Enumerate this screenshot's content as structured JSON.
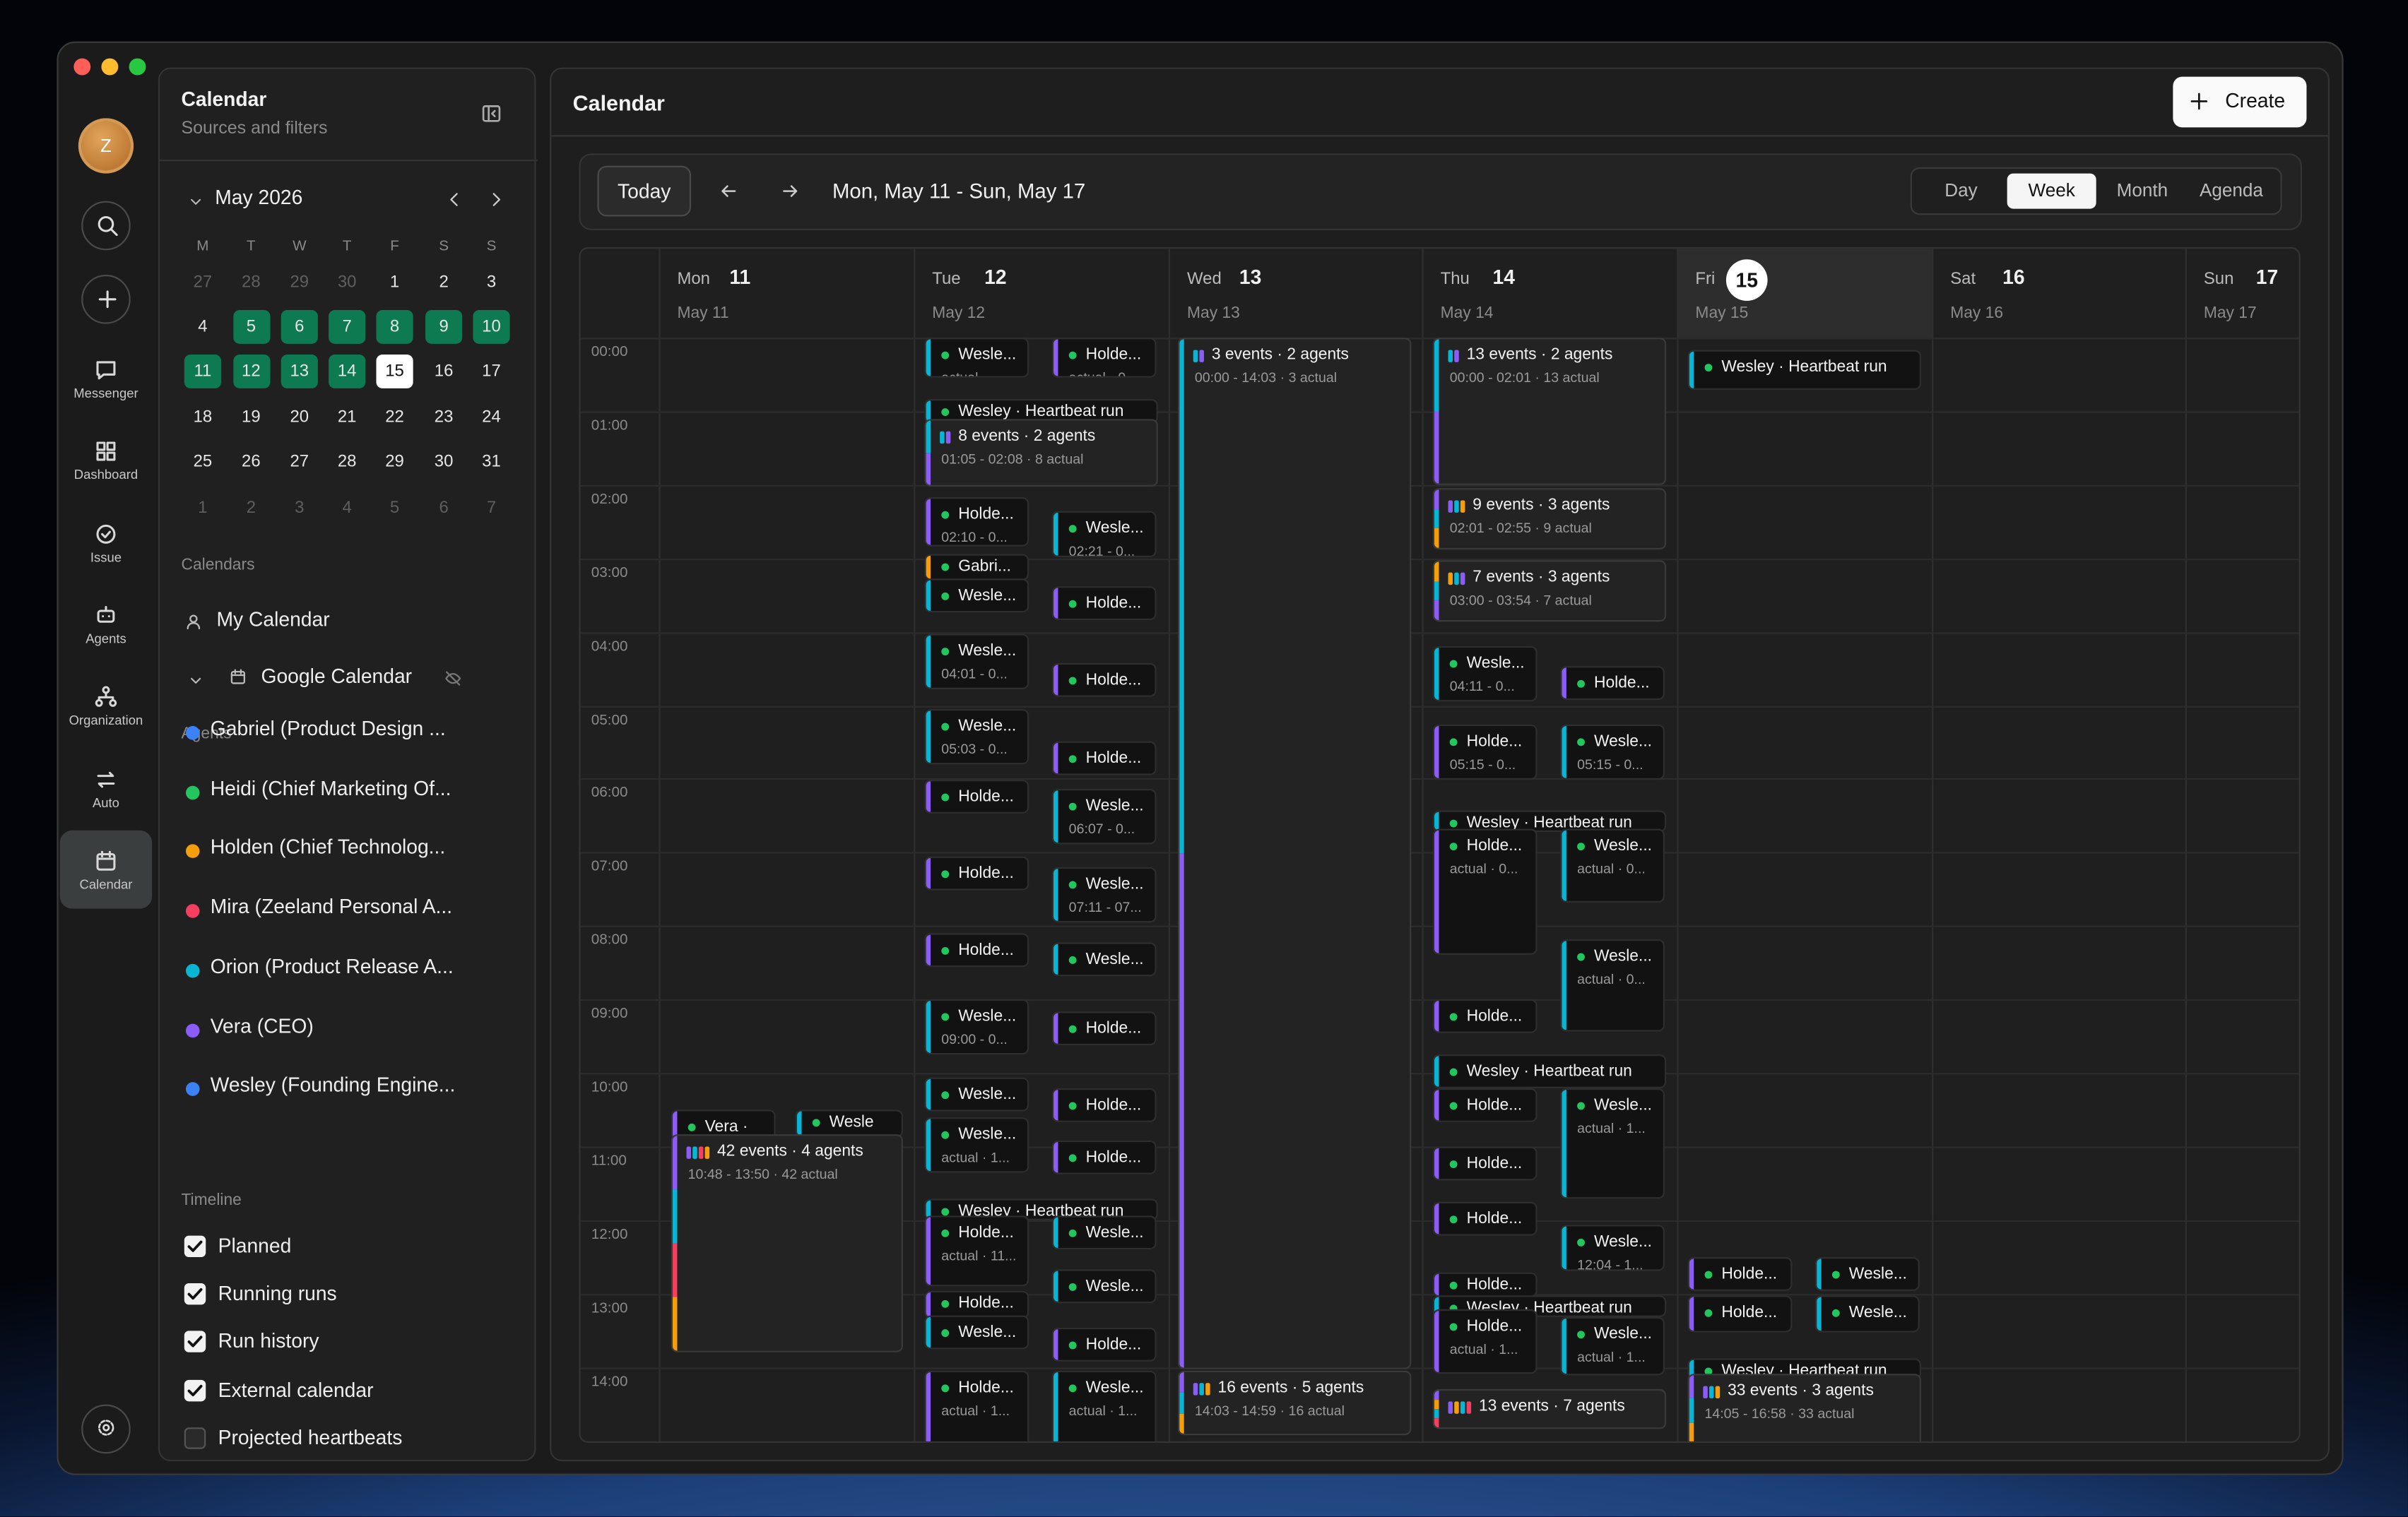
{
  "rail": {
    "avatar": "Z",
    "items": [
      "Messenger",
      "Dashboard",
      "Issue",
      "Agents",
      "Organization",
      "Auto",
      "Calendar"
    ],
    "active": 6
  },
  "sidebar": {
    "title": "Calendar",
    "subtitle": "Sources and filters",
    "month": "May 2026",
    "weekdays": [
      "M",
      "T",
      "W",
      "T",
      "F",
      "S",
      "S"
    ],
    "days": [
      [
        27,
        28,
        29,
        30,
        1,
        2,
        3
      ],
      [
        4,
        5,
        6,
        7,
        8,
        9,
        10
      ],
      [
        11,
        12,
        13,
        14,
        15,
        16,
        17
      ],
      [
        18,
        19,
        20,
        21,
        22,
        23,
        24
      ],
      [
        25,
        26,
        27,
        28,
        29,
        30,
        31
      ],
      [
        1,
        2,
        3,
        4,
        5,
        6,
        7
      ]
    ],
    "calendars_heading": "Calendars",
    "calendars": [
      "My Calendar",
      "Google Calendar"
    ],
    "agents_heading": "Agents",
    "agents": [
      {
        "name": "Gabriel (Product Design ...",
        "color": "#3b82f6"
      },
      {
        "name": "Heidi (Chief Marketing Of...",
        "color": "#22c55e"
      },
      {
        "name": "Holden (Chief Technolog...",
        "color": "#f59e0b"
      },
      {
        "name": "Mira (Zeeland Personal A...",
        "color": "#f43f5e"
      },
      {
        "name": "Orion (Product Release A...",
        "color": "#06b6d4"
      },
      {
        "name": "Vera (CEO)",
        "color": "#8b5cf6"
      },
      {
        "name": "Wesley (Founding Engine...",
        "color": "#3b82f6"
      }
    ],
    "timeline_heading": "Timeline",
    "timeline": [
      {
        "label": "Planned",
        "checked": true
      },
      {
        "label": "Running runs",
        "checked": true
      },
      {
        "label": "Run history",
        "checked": true
      },
      {
        "label": "External calendar",
        "checked": true
      },
      {
        "label": "Projected heartbeats",
        "checked": false
      }
    ]
  },
  "main": {
    "title": "Calendar",
    "create": "Create",
    "today": "Today",
    "range": "Mon, May 11 - Sun, May 17",
    "views": [
      "Day",
      "Week",
      "Month",
      "Agenda"
    ],
    "active_view": 1,
    "today_column": 4,
    "days": [
      {
        "dow": "Mon",
        "day": 11,
        "date": "May 11"
      },
      {
        "dow": "Tue",
        "day": 12,
        "date": "May 12"
      },
      {
        "dow": "Wed",
        "day": 13,
        "date": "May 13"
      },
      {
        "dow": "Thu",
        "day": 14,
        "date": "May 14"
      },
      {
        "dow": "Fri",
        "day": 15,
        "date": "May 15"
      },
      {
        "dow": "Sat",
        "day": 16,
        "date": "May 16"
      },
      {
        "dow": "Sun",
        "day": 17,
        "date": "May 17"
      }
    ],
    "hours": [
      "00:00",
      "01:00",
      "02:00",
      "03:00",
      "04:00",
      "05:00",
      "06:00",
      "07:00",
      "08:00",
      "09:00",
      "10:00",
      "11:00",
      "12:00",
      "13:00",
      "14:00"
    ],
    "events": [
      {
        "title": "Vera ·",
        "color": "#8b5cf6"
      },
      {
        "title": "Wesle",
        "color": "#06b6d4"
      },
      {
        "title": "42 events · 4 agents",
        "detail": "10:48 - 13:50 · 42 actual",
        "colors": [
          "#8b5cf6",
          "#06b6d4",
          "#f43f5e",
          "#f59e0b"
        ]
      },
      {
        "title": "Wesle...",
        "detail": "actual ·...",
        "color": "#06b6d4"
      },
      {
        "title": "Holde...",
        "detail": "actual · 0...",
        "color": "#8b5cf6"
      },
      {
        "title": "Wesley · Heartbeat run",
        "color": "#06b6d4"
      },
      {
        "title": "8 events · 2 agents",
        "detail": "01:05 - 02:08 · 8 actual",
        "colors": [
          "#06b6d4",
          "#8b5cf6"
        ]
      },
      {
        "title": "Holde...",
        "detail": "02:10 - 0...",
        "color": "#8b5cf6"
      },
      {
        "title": "Wesle...",
        "detail": "02:21 - 0...",
        "color": "#06b6d4"
      },
      {
        "title": "Gabri...",
        "color": "#f59e0b"
      },
      {
        "title": "Wesle...",
        "color": "#06b6d4"
      },
      {
        "title": "Holde...",
        "color": "#8b5cf6"
      },
      {
        "title": "Wesle...",
        "detail": "04:01 - 0...",
        "color": "#06b6d4"
      },
      {
        "title": "Holde...",
        "color": "#8b5cf6"
      },
      {
        "title": "Wesle...",
        "detail": "05:03 - 0...",
        "color": "#06b6d4"
      },
      {
        "title": "Holde...",
        "color": "#8b5cf6"
      },
      {
        "title": "Holde...",
        "color": "#8b5cf6"
      },
      {
        "title": "Wesle...",
        "detail": "06:07 - 0...",
        "color": "#06b6d4"
      },
      {
        "title": "Holde...",
        "color": "#8b5cf6"
      },
      {
        "title": "Wesle...",
        "detail": "07:11 - 07...",
        "color": "#06b6d4"
      },
      {
        "title": "Holde...",
        "color": "#8b5cf6"
      },
      {
        "title": "Wesle...",
        "color": "#06b6d4"
      },
      {
        "title": "Wesle...",
        "detail": "09:00 - 0...",
        "color": "#06b6d4"
      },
      {
        "title": "Holde...",
        "color": "#8b5cf6"
      },
      {
        "title": "Wesle...",
        "color": "#06b6d4"
      },
      {
        "title": "Holde...",
        "color": "#8b5cf6"
      },
      {
        "title": "Wesle...",
        "detail": "actual · 1...",
        "color": "#06b6d4"
      },
      {
        "title": "Holde...",
        "color": "#8b5cf6"
      },
      {
        "title": "Wesley · Heartbeat run",
        "color": "#06b6d4"
      },
      {
        "title": "Holde...",
        "detail": "actual · 11...",
        "color": "#8b5cf6"
      },
      {
        "title": "Wesle...",
        "color": "#06b6d4"
      },
      {
        "title": "Wesle...",
        "color": "#06b6d4"
      },
      {
        "title": "Holde...",
        "color": "#8b5cf6"
      },
      {
        "title": "Wesle...",
        "color": "#06b6d4"
      },
      {
        "title": "Holde...",
        "color": "#8b5cf6"
      },
      {
        "title": "Holde...",
        "detail": "actual · 1...",
        "color": "#8b5cf6"
      },
      {
        "title": "Wesle...",
        "detail": "actual · 1...",
        "color": "#06b6d4"
      },
      {
        "title": "3 events · 2 agents",
        "detail": "00:00 - 14:03 · 3 actual",
        "colors": [
          "#06b6d4",
          "#8b5cf6"
        ]
      },
      {
        "title": "16 events · 5 agents",
        "detail": "14:03 - 14:59 · 16 actual",
        "colors": [
          "#8b5cf6",
          "#06b6d4",
          "#f59e0b"
        ]
      },
      {
        "title": "13 events · 2 agents",
        "detail": "00:00 - 02:01 · 13 actual",
        "colors": [
          "#06b6d4",
          "#8b5cf6"
        ]
      },
      {
        "title": "9 events · 3 agents",
        "detail": "02:01 - 02:55 · 9 actual",
        "colors": [
          "#8b5cf6",
          "#06b6d4",
          "#f59e0b"
        ]
      },
      {
        "title": "7 events · 3 agents",
        "detail": "03:00 - 03:54 · 7 actual",
        "colors": [
          "#f59e0b",
          "#06b6d4",
          "#8b5cf6"
        ]
      },
      {
        "title": "Wesle...",
        "detail": "04:11 - 0...",
        "color": "#06b6d4"
      },
      {
        "title": "Holde...",
        "color": "#8b5cf6"
      },
      {
        "title": "Holde...",
        "detail": "05:15 - 0...",
        "color": "#8b5cf6"
      },
      {
        "title": "Wesle...",
        "detail": "05:15 - 0...",
        "color": "#06b6d4"
      },
      {
        "title": "Wesley · Heartbeat run",
        "color": "#06b6d4"
      },
      {
        "title": "Holde...",
        "detail": "actual · 0...",
        "color": "#8b5cf6"
      },
      {
        "title": "Wesle...",
        "detail": "actual · 0...",
        "color": "#06b6d4"
      },
      {
        "title": "Wesle...",
        "detail": "actual · 0...",
        "color": "#06b6d4"
      },
      {
        "title": "Holde...",
        "color": "#8b5cf6"
      },
      {
        "title": "Wesley · Heartbeat run",
        "color": "#06b6d4"
      },
      {
        "title": "Holde...",
        "color": "#8b5cf6"
      },
      {
        "title": "Wesle...",
        "detail": "actual · 1...",
        "color": "#06b6d4"
      },
      {
        "title": "Holde...",
        "color": "#8b5cf6"
      },
      {
        "title": "Holde...",
        "color": "#8b5cf6"
      },
      {
        "title": "Wesle...",
        "detail": "12:04 - 1...",
        "color": "#06b6d4"
      },
      {
        "title": "Holde...",
        "color": "#8b5cf6"
      },
      {
        "title": "Wesley · Heartbeat run",
        "color": "#06b6d4"
      },
      {
        "title": "Holde...",
        "detail": "actual · 1...",
        "color": "#8b5cf6"
      },
      {
        "title": "Wesle...",
        "detail": "actual · 1...",
        "color": "#06b6d4"
      },
      {
        "title": "13 events · 7 agents",
        "colors": [
          "#8b5cf6",
          "#f59e0b",
          "#06b6d4",
          "#f43f5e"
        ]
      },
      {
        "title": "Wesley · Heartbeat run",
        "color": "#06b6d4"
      },
      {
        "title": "Holde...",
        "color": "#8b5cf6"
      },
      {
        "title": "Wesle...",
        "color": "#06b6d4"
      },
      {
        "title": "Holde...",
        "color": "#8b5cf6"
      },
      {
        "title": "Wesle...",
        "color": "#06b6d4"
      },
      {
        "title": "Wesley · Heartbeat run",
        "color": "#06b6d4"
      },
      {
        "title": "33 events · 3 agents",
        "detail": "14:05 - 16:58 · 33 actual",
        "colors": [
          "#8b5cf6",
          "#06b6d4",
          "#f59e0b"
        ]
      }
    ]
  }
}
